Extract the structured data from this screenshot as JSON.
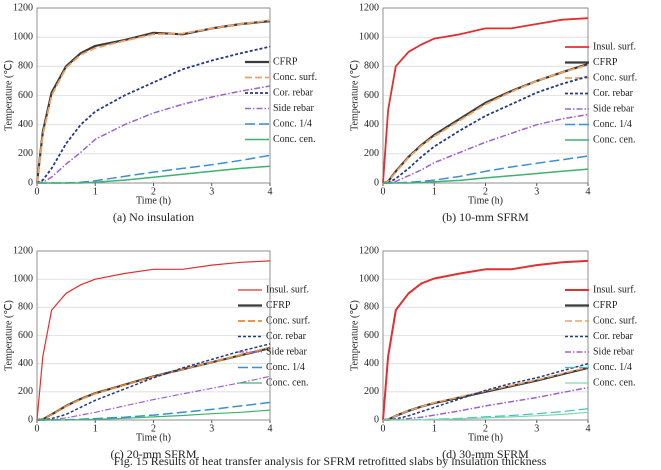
{
  "chart_data": [
    {
      "type": "line",
      "caption": "(a) No insulation",
      "xlabel": "Time (h)",
      "ylabel": "Temperature (℃)",
      "xlim": [
        0,
        4
      ],
      "xticks": [
        0,
        1,
        2,
        3,
        4
      ],
      "ylim": [
        0,
        1200
      ],
      "yticks": [
        0,
        200,
        400,
        600,
        800,
        1000,
        1200
      ],
      "grid": true,
      "x": [
        0,
        0.1,
        0.25,
        0.5,
        0.75,
        1,
        1.5,
        2,
        2.5,
        3,
        3.5,
        4
      ],
      "series": [
        {
          "name": "CFRP",
          "color": "#3a3a3a",
          "style": "solid",
          "width": 2.2,
          "values": [
            0,
            350,
            620,
            800,
            890,
            940,
            980,
            1030,
            1020,
            1060,
            1090,
            1110
          ]
        },
        {
          "name": "Conc. surf.",
          "color": "#f0a060",
          "style": "dashed",
          "width": 1.8,
          "values": [
            0,
            330,
            600,
            790,
            880,
            925,
            975,
            1020,
            1025,
            1060,
            1090,
            1115
          ]
        },
        {
          "name": "Cor. rebar",
          "color": "#233a80",
          "style": "dotted",
          "width": 1.8,
          "values": [
            0,
            20,
            100,
            270,
            400,
            490,
            600,
            690,
            780,
            840,
            890,
            935
          ]
        },
        {
          "name": "Side rebar",
          "color": "#a060d0",
          "style": "dashdot",
          "width": 1.5,
          "values": [
            0,
            5,
            40,
            130,
            210,
            300,
            400,
            480,
            540,
            590,
            630,
            665
          ]
        },
        {
          "name": "Conc. 1/4",
          "color": "#3a8fd0",
          "style": "longdash",
          "width": 1.5,
          "values": [
            0,
            0,
            0,
            0,
            5,
            15,
            45,
            75,
            100,
            125,
            155,
            190
          ]
        },
        {
          "name": "Conc. cen.",
          "color": "#3cb371",
          "style": "solid",
          "width": 1.5,
          "values": [
            0,
            0,
            0,
            0,
            0,
            5,
            20,
            40,
            60,
            80,
            100,
            115
          ]
        }
      ]
    },
    {
      "type": "line",
      "caption": "(b) 10-mm SFRM",
      "xlabel": "Time (h)",
      "ylabel": "Temperature (℃)",
      "xlim": [
        0,
        4
      ],
      "xticks": [
        0,
        1,
        2,
        3,
        4
      ],
      "ylim": [
        0,
        1200
      ],
      "yticks": [
        0,
        200,
        400,
        600,
        800,
        1000,
        1200
      ],
      "grid": true,
      "x": [
        0,
        0.1,
        0.25,
        0.5,
        0.75,
        1,
        1.5,
        2,
        2.5,
        3,
        3.5,
        4
      ],
      "series": [
        {
          "name": "Insul. surf.",
          "color": "#e03030",
          "style": "solid",
          "width": 1.8,
          "values": [
            0,
            500,
            800,
            900,
            950,
            990,
            1020,
            1060,
            1060,
            1090,
            1120,
            1130
          ]
        },
        {
          "name": "CFRP",
          "color": "#3a3a3a",
          "style": "solid",
          "width": 2.2,
          "values": [
            0,
            10,
            80,
            180,
            260,
            330,
            440,
            550,
            630,
            700,
            760,
            815
          ]
        },
        {
          "name": "Conc. surf.",
          "color": "#f0a060",
          "style": "dashed",
          "width": 1.8,
          "values": [
            0,
            8,
            75,
            175,
            255,
            320,
            430,
            540,
            625,
            700,
            760,
            810
          ]
        },
        {
          "name": "Cor. rebar",
          "color": "#233a80",
          "style": "dotted",
          "width": 1.8,
          "values": [
            0,
            0,
            30,
            100,
            180,
            250,
            360,
            460,
            540,
            620,
            680,
            730
          ]
        },
        {
          "name": "Side rebar",
          "color": "#a060d0",
          "style": "dashdot",
          "width": 1.5,
          "values": [
            0,
            0,
            10,
            50,
            90,
            140,
            210,
            280,
            340,
            400,
            440,
            470
          ]
        },
        {
          "name": "Conc. 1/4",
          "color": "#3a8fd0",
          "style": "longdash",
          "width": 1.5,
          "values": [
            0,
            0,
            0,
            5,
            10,
            20,
            45,
            80,
            110,
            135,
            160,
            185
          ]
        },
        {
          "name": "Conc. cen.",
          "color": "#3cb371",
          "style": "solid",
          "width": 1.5,
          "values": [
            0,
            0,
            0,
            0,
            3,
            8,
            18,
            35,
            50,
            65,
            80,
            95
          ]
        }
      ]
    },
    {
      "type": "line",
      "caption": "(c) 20-mm SFRM",
      "xlabel": "Time (h)",
      "ylabel": "Temperature (℃)",
      "xlim": [
        0,
        4
      ],
      "xticks": [
        0,
        1,
        2,
        3,
        4
      ],
      "ylim": [
        0,
        1200
      ],
      "yticks": [
        0,
        200,
        400,
        600,
        800,
        1000,
        1200
      ],
      "grid": true,
      "x": [
        0,
        0.1,
        0.25,
        0.5,
        0.75,
        1,
        1.5,
        2,
        2.5,
        3,
        3.5,
        4
      ],
      "series": [
        {
          "name": "Insul. surf.",
          "color": "#e03030",
          "style": "solid",
          "width": 1.2,
          "values": [
            0,
            450,
            780,
            900,
            960,
            1000,
            1040,
            1070,
            1070,
            1100,
            1120,
            1130
          ]
        },
        {
          "name": "CFRP",
          "color": "#3a3a3a",
          "style": "solid",
          "width": 2.2,
          "values": [
            0,
            5,
            40,
            100,
            150,
            190,
            250,
            310,
            360,
            410,
            460,
            510
          ]
        },
        {
          "name": "Conc. surf.",
          "color": "#e08a40",
          "style": "dashed",
          "width": 1.8,
          "values": [
            0,
            4,
            38,
            98,
            148,
            188,
            248,
            308,
            360,
            410,
            462,
            515
          ]
        },
        {
          "name": "Cor. rebar",
          "color": "#233a80",
          "style": "dotted",
          "width": 1.5,
          "values": [
            0,
            0,
            10,
            40,
            90,
            140,
            220,
            300,
            370,
            430,
            490,
            540
          ]
        },
        {
          "name": "Side rebar",
          "color": "#a060d0",
          "style": "dashdot",
          "width": 1.2,
          "values": [
            0,
            0,
            3,
            15,
            35,
            55,
            100,
            145,
            185,
            225,
            265,
            310
          ]
        },
        {
          "name": "Conc. 1/4",
          "color": "#3a8fd0",
          "style": "longdash",
          "width": 1.5,
          "values": [
            0,
            0,
            0,
            2,
            5,
            10,
            20,
            35,
            55,
            75,
            100,
            125
          ]
        },
        {
          "name": "Conc. cen.",
          "color": "#3cb371",
          "style": "solid",
          "width": 1.2,
          "values": [
            0,
            0,
            0,
            0,
            2,
            5,
            12,
            22,
            32,
            45,
            55,
            70
          ]
        }
      ]
    },
    {
      "type": "line",
      "caption": "(d) 30-mm SFRM",
      "xlabel": "Time (h)",
      "ylabel": "Temperature (℃)",
      "xlim": [
        0,
        4
      ],
      "xticks": [
        0,
        1,
        2,
        3,
        4
      ],
      "ylim": [
        0,
        1200
      ],
      "yticks": [
        0,
        200,
        400,
        600,
        800,
        1000,
        1200
      ],
      "grid": true,
      "x": [
        0,
        0.1,
        0.25,
        0.5,
        0.75,
        1,
        1.5,
        2,
        2.5,
        3,
        3.5,
        4
      ],
      "series": [
        {
          "name": "Insul. surf.",
          "color": "#e03030",
          "style": "solid",
          "width": 2,
          "values": [
            0,
            450,
            780,
            900,
            970,
            1005,
            1040,
            1070,
            1070,
            1100,
            1120,
            1130
          ]
        },
        {
          "name": "CFRP",
          "color": "#3a3a3a",
          "style": "solid",
          "width": 2.2,
          "values": [
            0,
            3,
            30,
            65,
            95,
            120,
            160,
            200,
            240,
            280,
            325,
            370
          ]
        },
        {
          "name": "Conc. surf.",
          "color": "#f0a060",
          "style": "dashed",
          "width": 1.5,
          "values": [
            0,
            3,
            30,
            65,
            95,
            122,
            165,
            205,
            245,
            285,
            330,
            375
          ]
        },
        {
          "name": "Cor. rebar",
          "color": "#233a80",
          "style": "dotted",
          "width": 1.5,
          "values": [
            0,
            0,
            8,
            30,
            60,
            90,
            150,
            210,
            260,
            300,
            350,
            400
          ]
        },
        {
          "name": "Side rebar",
          "color": "#a060d0",
          "style": "dashdot",
          "width": 1.5,
          "values": [
            0,
            0,
            2,
            10,
            20,
            35,
            65,
            100,
            130,
            160,
            195,
            230
          ]
        },
        {
          "name": "Conc. 1/4",
          "color": "#40c0c0",
          "style": "longdash",
          "width": 1.2,
          "values": [
            0,
            0,
            0,
            1,
            3,
            6,
            12,
            22,
            32,
            45,
            60,
            80
          ]
        },
        {
          "name": "Conc. cen.",
          "color": "#7fd8b0",
          "style": "solid",
          "width": 1.2,
          "values": [
            0,
            0,
            0,
            0,
            1,
            3,
            8,
            15,
            22,
            30,
            40,
            55
          ]
        }
      ]
    }
  ],
  "caption": "Fig. 15 Results of heat transfer analysis for SFRM retrofitted slabs by insulation thickness"
}
